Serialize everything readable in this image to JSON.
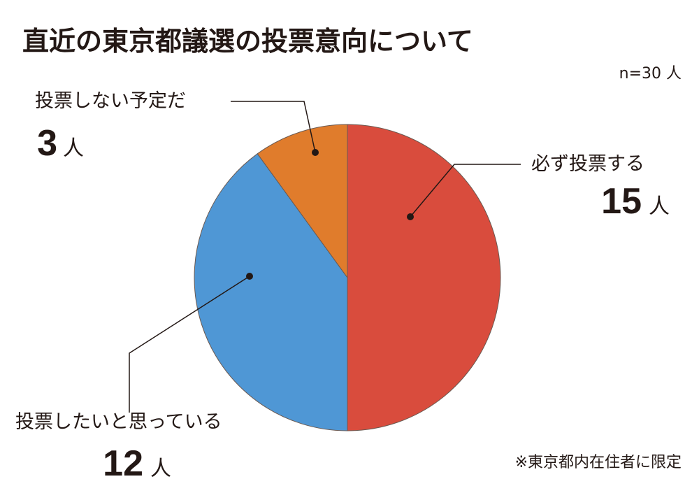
{
  "chart_data": {
    "type": "pie",
    "title": "直近の東京都議選の投票意向について",
    "subtitle": "n=30 人",
    "note": "※東京都内在住者に限定",
    "unit": "人",
    "categories": [
      "必ず投票する",
      "投票したいと思っている",
      "投票しない予定だ"
    ],
    "values": [
      15,
      12,
      3
    ],
    "colors": [
      "#d94c3d",
      "#4f97d5",
      "#e07c2c"
    ]
  }
}
